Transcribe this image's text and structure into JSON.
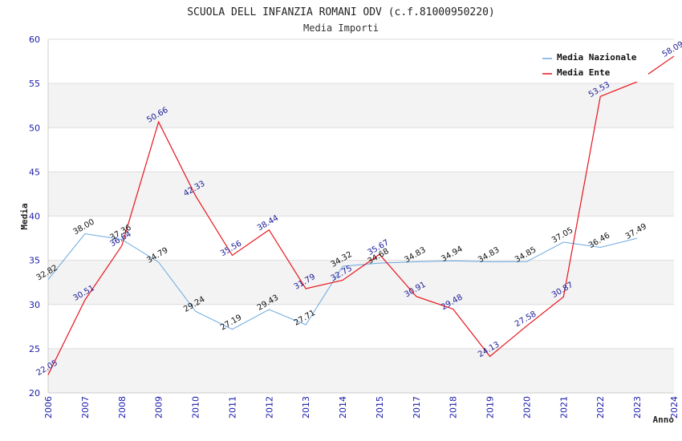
{
  "chart_data": {
    "type": "line",
    "title": "SCUOLA DELL INFANZIA ROMANI ODV (c.f.81000950220)",
    "subtitle": "Media Importi",
    "xlabel": "Anno",
    "ylabel": "Media",
    "ylim": [
      20,
      60
    ],
    "yticks": [
      20,
      25,
      30,
      35,
      40,
      45,
      50,
      55,
      60
    ],
    "categories": [
      "2006",
      "2007",
      "2008",
      "2009",
      "2010",
      "2011",
      "2012",
      "2013",
      "2014",
      "2015",
      "2017",
      "2018",
      "2019",
      "2020",
      "2021",
      "2022",
      "2023",
      "2024"
    ],
    "legend_position": "top-right",
    "grid": true,
    "series": [
      {
        "name": "Media Nazionale",
        "color": "#6aa8e0",
        "values": [
          32.82,
          38.0,
          37.36,
          34.79,
          29.24,
          27.19,
          29.43,
          27.71,
          34.32,
          34.68,
          34.83,
          34.94,
          34.83,
          34.85,
          37.05,
          36.46,
          37.49,
          null
        ],
        "labels": [
          "32.82",
          "38.00",
          "37.36",
          "34.79",
          "29.24",
          "27.19",
          "29.43",
          "27.71",
          "34.32",
          "34.68",
          "34.83",
          "34.94",
          "34.83",
          "34.85",
          "37.05",
          "36.46",
          "37.49",
          ""
        ]
      },
      {
        "name": "Media Ente",
        "color": "#e8141c",
        "values": [
          22.05,
          30.51,
          36.64,
          50.66,
          42.33,
          35.56,
          38.44,
          31.79,
          32.75,
          35.67,
          30.91,
          29.48,
          24.13,
          27.58,
          30.87,
          53.53,
          55.2,
          58.09
        ],
        "labels": [
          "22.05",
          "30.51",
          "36.64",
          "50.66",
          "42.33",
          "35.56",
          "38.44",
          "31.79",
          "32.75",
          "35.67",
          "30.91",
          "29.48",
          "24.13",
          "27.58",
          "30.87",
          "53.53",
          "",
          "58.09"
        ]
      }
    ]
  }
}
